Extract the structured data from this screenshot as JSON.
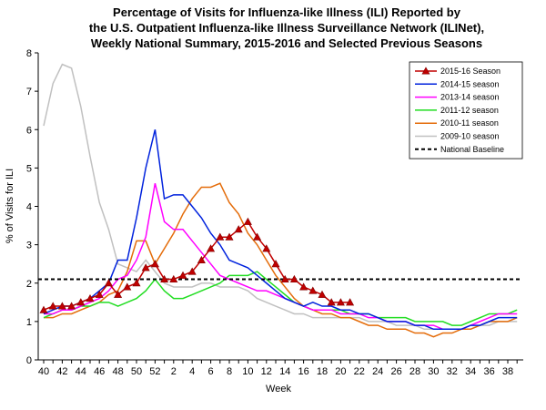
{
  "chart_data": {
    "type": "line",
    "title": [
      "Percentage of Visits for Influenza-like Illness (ILI) Reported by",
      "the U.S. Outpatient Influenza-like Illness Surveillance Network (ILINet),",
      "Weekly National Summary, 2015-2016 and Selected Previous Seasons"
    ],
    "x_label": "Week",
    "y_label": "% of Visits for ILI",
    "categories": [
      "40",
      null,
      "42",
      null,
      "44",
      null,
      "46",
      null,
      "48",
      null,
      "50",
      null,
      "52",
      null,
      "2",
      null,
      "4",
      null,
      "6",
      null,
      "8",
      null,
      "10",
      null,
      "12",
      null,
      "14",
      null,
      "16",
      null,
      "18",
      null,
      "20",
      null,
      "22",
      null,
      "24",
      null,
      "26",
      null,
      "28",
      null,
      "30",
      null,
      "32",
      null,
      "34",
      null,
      "36",
      null,
      "38",
      null
    ],
    "ylim": [
      0,
      8
    ],
    "yticks": [
      0,
      1,
      2,
      3,
      4,
      5,
      6,
      7,
      8
    ],
    "legend": "upper right",
    "series": [
      {
        "name": "2015-16 Season",
        "color": "#c00000",
        "marker": "triangle",
        "values": [
          1.3,
          1.4,
          1.4,
          1.4,
          1.5,
          1.6,
          1.7,
          2.0,
          1.7,
          1.9,
          2.0,
          2.4,
          2.5,
          2.1,
          2.1,
          2.2,
          2.3,
          2.6,
          2.9,
          3.2,
          3.2,
          3.4,
          3.6,
          3.2,
          2.9,
          2.5,
          2.1,
          2.1,
          1.9,
          1.8,
          1.7,
          1.5,
          1.5,
          1.5,
          null,
          null,
          null,
          null,
          null,
          null,
          null,
          null,
          null,
          null,
          null,
          null,
          null,
          null,
          null,
          null,
          null,
          null
        ]
      },
      {
        "name": "2014-15 season",
        "color": "#0022dd",
        "values": [
          1.2,
          1.3,
          1.4,
          1.4,
          1.5,
          1.6,
          1.8,
          2.0,
          2.6,
          2.6,
          3.7,
          5.0,
          6.0,
          4.2,
          4.3,
          4.3,
          4.0,
          3.7,
          3.3,
          3.0,
          2.6,
          2.5,
          2.4,
          2.2,
          2.0,
          1.8,
          1.6,
          1.5,
          1.4,
          1.5,
          1.4,
          1.4,
          1.3,
          1.3,
          1.2,
          1.2,
          1.1,
          1.0,
          1.0,
          1.0,
          0.9,
          0.9,
          0.8,
          0.8,
          0.8,
          0.8,
          0.9,
          0.9,
          1.0,
          1.1,
          1.1,
          1.1
        ]
      },
      {
        "name": "2013-14 season",
        "color": "#ff00ff",
        "values": [
          1.2,
          1.2,
          1.3,
          1.3,
          1.4,
          1.5,
          1.6,
          1.8,
          2.1,
          2.2,
          2.6,
          3.2,
          4.6,
          3.6,
          3.4,
          3.4,
          3.1,
          2.8,
          2.5,
          2.2,
          2.1,
          2.0,
          1.9,
          1.8,
          1.8,
          1.7,
          1.6,
          1.5,
          1.4,
          1.3,
          1.3,
          1.3,
          1.2,
          1.2,
          1.2,
          1.1,
          1.1,
          1.0,
          1.0,
          1.0,
          0.9,
          0.9,
          0.9,
          0.8,
          0.8,
          0.8,
          0.9,
          1.0,
          1.1,
          1.2,
          1.2,
          1.2
        ]
      },
      {
        "name": "2011-12 season",
        "color": "#22dd22",
        "values": [
          1.1,
          1.2,
          1.3,
          1.3,
          1.4,
          1.4,
          1.5,
          1.5,
          1.4,
          1.5,
          1.6,
          1.8,
          2.1,
          1.8,
          1.6,
          1.6,
          1.7,
          1.8,
          1.9,
          2.0,
          2.2,
          2.2,
          2.2,
          2.3,
          2.1,
          1.9,
          1.7,
          1.5,
          1.4,
          1.3,
          1.3,
          1.3,
          1.3,
          1.2,
          1.2,
          1.2,
          1.1,
          1.1,
          1.1,
          1.1,
          1.0,
          1.0,
          1.0,
          1.0,
          0.9,
          0.9,
          1.0,
          1.1,
          1.2,
          1.2,
          1.2,
          1.3
        ]
      },
      {
        "name": "2010-11 season",
        "color": "#e46c0a",
        "values": [
          1.1,
          1.1,
          1.2,
          1.2,
          1.3,
          1.4,
          1.5,
          1.7,
          1.8,
          2.3,
          3.1,
          3.1,
          2.5,
          2.9,
          3.3,
          3.8,
          4.2,
          4.5,
          4.5,
          4.6,
          4.1,
          3.8,
          3.3,
          3.0,
          2.6,
          2.2,
          1.9,
          1.6,
          1.4,
          1.3,
          1.2,
          1.2,
          1.1,
          1.1,
          1.0,
          0.9,
          0.9,
          0.8,
          0.8,
          0.8,
          0.7,
          0.7,
          0.6,
          0.7,
          0.7,
          0.8,
          0.8,
          0.9,
          1.0,
          1.0,
          1.0,
          1.1
        ]
      },
      {
        "name": "2009-10 season",
        "color": "#c0c0c0",
        "values": [
          6.1,
          7.2,
          7.7,
          7.6,
          6.6,
          5.3,
          4.1,
          3.4,
          2.5,
          2.4,
          2.3,
          2.6,
          2.3,
          2.0,
          1.9,
          1.9,
          1.9,
          2.0,
          2.0,
          1.9,
          1.9,
          1.9,
          1.8,
          1.6,
          1.5,
          1.4,
          1.3,
          1.2,
          1.2,
          1.1,
          1.1,
          1.1,
          1.1,
          1.1,
          1.1,
          1.0,
          1.0,
          1.0,
          0.9,
          0.9,
          0.9,
          0.8,
          0.8,
          0.8,
          0.8,
          0.8,
          0.8,
          0.9,
          0.9,
          1.0,
          1.0,
          1.0
        ]
      }
    ],
    "baseline": {
      "name": "National Baseline",
      "value": 2.1,
      "color": "#000000"
    }
  }
}
